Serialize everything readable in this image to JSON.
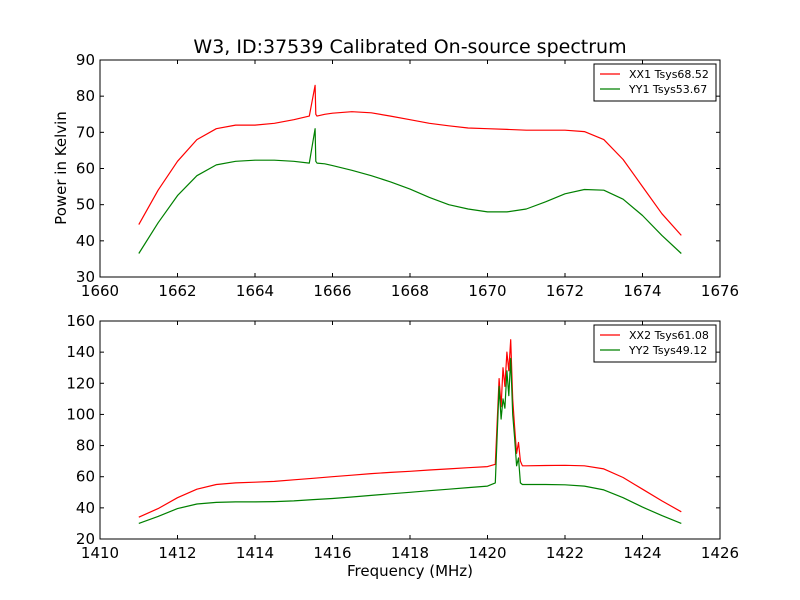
{
  "title": "W3, ID:37539 Calibrated On-source spectrum",
  "xlabel": "Frequency (MHz)",
  "colors": {
    "red": "#ff0000",
    "green": "#008000"
  },
  "chart_data": [
    {
      "type": "line",
      "title": "W3, ID:37539 Calibrated On-source spectrum",
      "xlabel": "",
      "ylabel": "Power in Kelvin",
      "xlim": [
        1660,
        1676
      ],
      "ylim": [
        30,
        90
      ],
      "xticks": [
        "1660",
        "1662",
        "1664",
        "1666",
        "1668",
        "1670",
        "1672",
        "1674",
        "1676"
      ],
      "yticks": [
        "30",
        "40",
        "50",
        "60",
        "70",
        "80",
        "90"
      ],
      "legend": "top-right",
      "series": [
        {
          "name": "XX1 Tsys68.52",
          "color": "#ff0000",
          "x": [
            1661.0,
            1661.5,
            1662.0,
            1662.5,
            1663.0,
            1663.5,
            1664.0,
            1664.5,
            1665.0,
            1665.4,
            1665.55,
            1665.57,
            1665.6,
            1665.8,
            1666.0,
            1666.5,
            1667.0,
            1667.5,
            1668.0,
            1668.5,
            1669.0,
            1669.5,
            1670.0,
            1670.5,
            1671.0,
            1671.5,
            1672.0,
            1672.5,
            1673.0,
            1673.5,
            1674.0,
            1674.5,
            1675.0
          ],
          "y": [
            44.5,
            54.0,
            62.0,
            68.0,
            71.0,
            72.0,
            72.0,
            72.5,
            73.5,
            74.5,
            83.0,
            75.0,
            74.5,
            75.0,
            75.3,
            75.7,
            75.4,
            74.5,
            73.5,
            72.5,
            71.8,
            71.2,
            71.0,
            70.8,
            70.6,
            70.6,
            70.6,
            70.2,
            68.0,
            62.5,
            55.0,
            47.5,
            41.5
          ]
        },
        {
          "name": "YY1 Tsys53.67",
          "color": "#008000",
          "x": [
            1661.0,
            1661.5,
            1662.0,
            1662.5,
            1663.0,
            1663.5,
            1664.0,
            1664.5,
            1665.0,
            1665.4,
            1665.55,
            1665.57,
            1665.6,
            1665.8,
            1666.0,
            1666.5,
            1667.0,
            1667.5,
            1668.0,
            1668.5,
            1669.0,
            1669.5,
            1670.0,
            1670.5,
            1671.0,
            1671.5,
            1672.0,
            1672.5,
            1673.0,
            1673.5,
            1674.0,
            1674.5,
            1675.0
          ],
          "y": [
            36.5,
            45.0,
            52.5,
            58.0,
            61.0,
            62.0,
            62.3,
            62.3,
            62.0,
            61.5,
            71.0,
            62.0,
            61.5,
            61.3,
            60.8,
            59.5,
            58.0,
            56.3,
            54.3,
            52.0,
            50.0,
            48.8,
            48.0,
            48.0,
            48.8,
            50.8,
            53.0,
            54.2,
            54.0,
            51.5,
            47.0,
            41.5,
            36.5
          ]
        }
      ]
    },
    {
      "type": "line",
      "title": "",
      "xlabel": "Frequency (MHz)",
      "ylabel": "",
      "xlim": [
        1410,
        1426
      ],
      "ylim": [
        20,
        160
      ],
      "xticks": [
        "1410",
        "1412",
        "1414",
        "1416",
        "1418",
        "1420",
        "1422",
        "1424",
        "1426"
      ],
      "yticks": [
        "20",
        "40",
        "60",
        "80",
        "100",
        "120",
        "140",
        "160"
      ],
      "legend": "top-right",
      "series": [
        {
          "name": "XX2 Tsys61.08",
          "color": "#ff0000",
          "x": [
            1411.0,
            1411.5,
            1412.0,
            1412.5,
            1413.0,
            1413.5,
            1414.0,
            1414.5,
            1415.0,
            1415.5,
            1416.0,
            1416.5,
            1417.0,
            1417.5,
            1418.0,
            1418.5,
            1419.0,
            1419.5,
            1420.0,
            1420.2,
            1420.3,
            1420.35,
            1420.4,
            1420.45,
            1420.5,
            1420.55,
            1420.6,
            1420.65,
            1420.7,
            1420.75,
            1420.8,
            1420.85,
            1420.9,
            1421.0,
            1421.5,
            1422.0,
            1422.5,
            1423.0,
            1423.5,
            1424.0,
            1424.5,
            1425.0
          ],
          "y": [
            34.0,
            39.5,
            46.5,
            52.0,
            55.0,
            56.0,
            56.5,
            57.0,
            58.0,
            59.0,
            60.0,
            61.0,
            62.0,
            62.8,
            63.5,
            64.3,
            65.0,
            65.8,
            66.5,
            68.0,
            123.0,
            105.0,
            130.0,
            118.0,
            140.0,
            128.0,
            148.0,
            110.0,
            92.0,
            75.0,
            82.0,
            70.0,
            67.0,
            67.0,
            67.2,
            67.3,
            67.0,
            65.0,
            59.5,
            52.0,
            44.5,
            37.5
          ]
        },
        {
          "name": "YY2 Tsys49.12",
          "color": "#008000",
          "x": [
            1411.0,
            1411.5,
            1412.0,
            1412.5,
            1413.0,
            1413.5,
            1414.0,
            1414.5,
            1415.0,
            1415.5,
            1416.0,
            1416.5,
            1417.0,
            1417.5,
            1418.0,
            1418.5,
            1419.0,
            1419.5,
            1420.0,
            1420.2,
            1420.3,
            1420.35,
            1420.4,
            1420.45,
            1420.5,
            1420.55,
            1420.6,
            1420.65,
            1420.7,
            1420.75,
            1420.8,
            1420.85,
            1420.9,
            1421.0,
            1421.5,
            1422.0,
            1422.5,
            1423.0,
            1423.5,
            1424.0,
            1424.5,
            1425.0
          ],
          "y": [
            30.0,
            34.5,
            39.5,
            42.5,
            43.5,
            43.8,
            43.8,
            44.0,
            44.5,
            45.3,
            46.0,
            47.0,
            48.0,
            49.0,
            50.0,
            51.0,
            52.0,
            53.0,
            54.0,
            56.0,
            118.0,
            97.0,
            110.0,
            104.0,
            128.0,
            112.0,
            136.0,
            100.0,
            85.0,
            67.0,
            72.0,
            56.0,
            55.0,
            55.0,
            55.0,
            54.8,
            54.0,
            51.5,
            46.5,
            40.5,
            35.0,
            30.0
          ]
        }
      ]
    }
  ]
}
